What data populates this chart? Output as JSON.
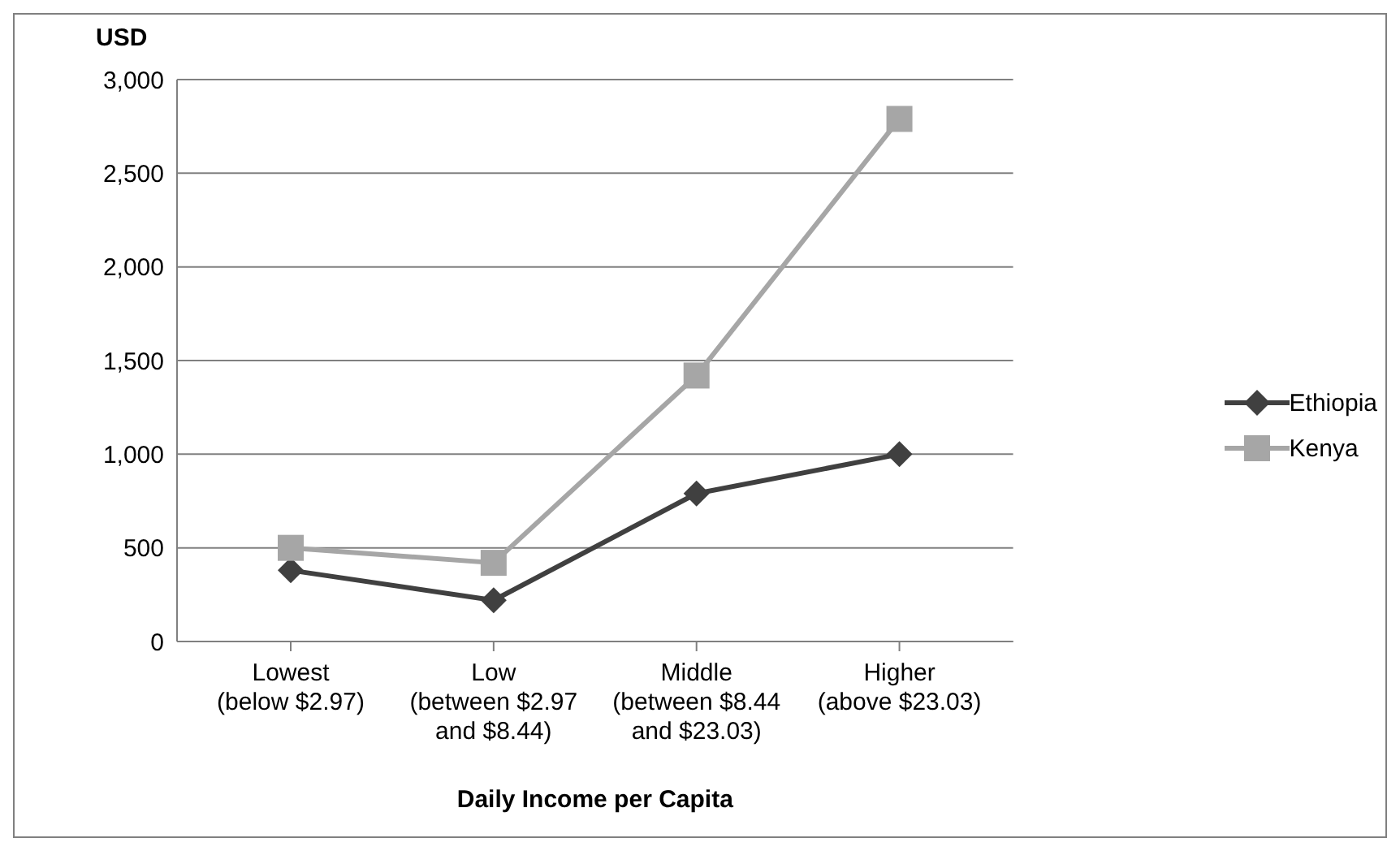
{
  "chart_data": {
    "type": "line",
    "ylabel": "USD",
    "xlabel": "Daily Income per Capita",
    "categories": [
      "Lowest\n(below $2.97)",
      "Low\n(between $2.97\nand $8.44)",
      "Middle\n(between $8.44\nand $23.03)",
      "Higher\n(above $23.03)"
    ],
    "series": [
      {
        "name": "Ethiopia",
        "color": "#404040",
        "marker": "diamond",
        "values": [
          380,
          220,
          790,
          1000
        ]
      },
      {
        "name": "Kenya",
        "color": "#a6a6a6",
        "marker": "square",
        "values": [
          500,
          420,
          1420,
          2790
        ]
      }
    ],
    "ylim": [
      0,
      3000
    ],
    "yticks": [
      {
        "value": 0,
        "label": "0"
      },
      {
        "value": 500,
        "label": "500"
      },
      {
        "value": 1000,
        "label": "1,000"
      },
      {
        "value": 1500,
        "label": "1,500"
      },
      {
        "value": 2000,
        "label": "2,000"
      },
      {
        "value": 2500,
        "label": "2,500"
      },
      {
        "value": 3000,
        "label": "3,000"
      }
    ],
    "grid": "y",
    "legend": "right"
  }
}
